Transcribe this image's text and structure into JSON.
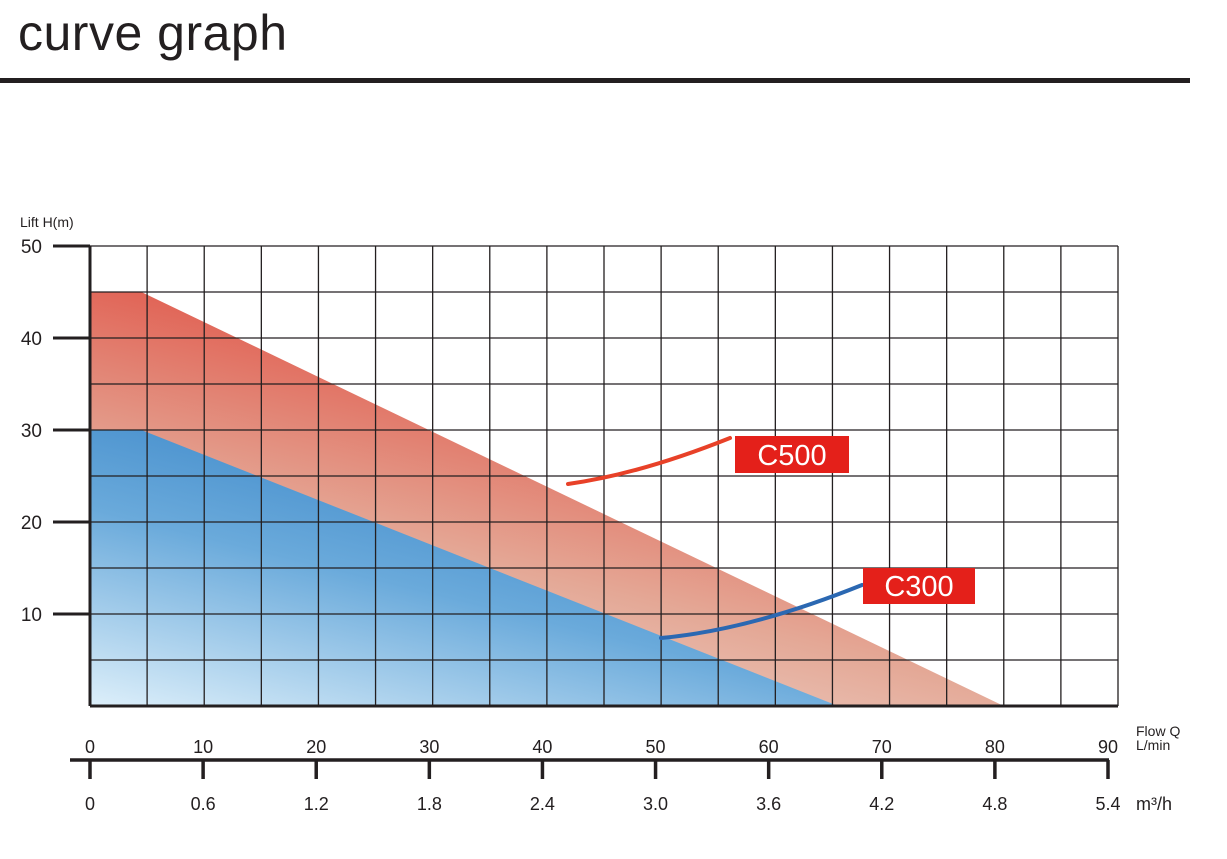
{
  "header": {
    "title": "curve graph"
  },
  "chart_data": {
    "type": "area",
    "ylabel": "Lift H(m)",
    "xlabel_top": [
      "Flow Q",
      "L/min"
    ],
    "xlabel_bottom": "m³/h",
    "ylim": [
      0,
      50
    ],
    "xlim": [
      0,
      90
    ],
    "y_ticks": [
      "10",
      "20",
      "30",
      "40",
      "50"
    ],
    "y_tick_values": [
      10,
      20,
      30,
      40,
      50
    ],
    "x_ticks_lmin": [
      "0",
      "10",
      "20",
      "30",
      "40",
      "50",
      "60",
      "70",
      "80",
      "90"
    ],
    "x_ticks_m3h": [
      "0",
      "0.6",
      "1.2",
      "1.8",
      "2.4",
      "3.0",
      "3.6",
      "4.2",
      "4.8",
      "5.4"
    ],
    "grid": true,
    "grid_x_step": 5,
    "grid_y_step": 5,
    "series": [
      {
        "name": "C500",
        "x": [
          0,
          4.5,
          80
        ],
        "y": [
          45,
          45,
          0
        ],
        "color": "#e02d26",
        "label_bg": "#e4201a"
      },
      {
        "name": "C300",
        "x": [
          0,
          4.5,
          65.5
        ],
        "y": [
          30,
          30,
          0
        ],
        "color": "#3d88c8",
        "label_bg": "#e4201a"
      }
    ],
    "callout_colors": {
      "C500": "#e84128",
      "C300": "#2b68b2"
    }
  }
}
